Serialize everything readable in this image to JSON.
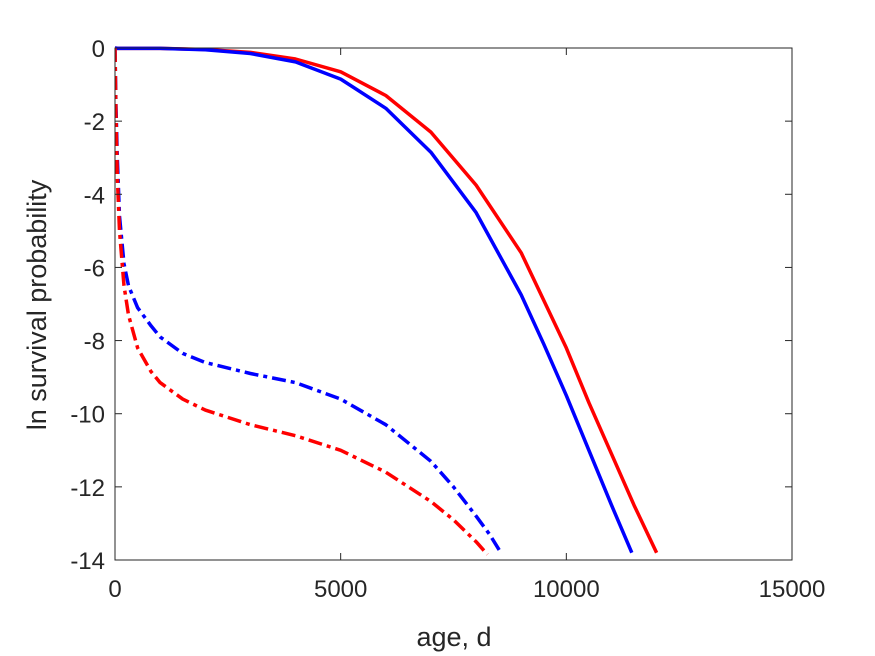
{
  "chart_data": {
    "type": "line",
    "title": "",
    "xlabel": "age, d",
    "ylabel": "ln survival probability",
    "xlim": [
      0,
      15000
    ],
    "ylim": [
      -14,
      0
    ],
    "xticks": [
      0,
      5000,
      10000,
      15000
    ],
    "yticks": [
      0,
      -2,
      -4,
      -6,
      -8,
      -10,
      -12,
      -14
    ],
    "xtick_labels": [
      "0",
      "5000",
      "10000",
      "15000"
    ],
    "ytick_labels": [
      "0",
      "-2",
      "-4",
      "-6",
      "-8",
      "-10",
      "-12",
      "-14"
    ],
    "grid": false,
    "legend": "none",
    "series": [
      {
        "color": "#ff0000",
        "style": "solid",
        "x": [
          0,
          60,
          500,
          1000,
          2000,
          3000,
          4000,
          5000,
          6000,
          7000,
          8000,
          9000,
          10000,
          10500,
          11000,
          11500,
          12000
        ],
        "y": [
          -0.0,
          -0.01,
          -0.01,
          -0.01,
          -0.04,
          -0.12,
          -0.3,
          -0.65,
          -1.3,
          -2.3,
          -3.75,
          -5.6,
          -8.2,
          -9.7,
          -11.1,
          -12.5,
          -13.8
        ]
      },
      {
        "color": "#0000ff",
        "style": "solid",
        "x": [
          0,
          60,
          500,
          1000,
          2000,
          3000,
          4000,
          5000,
          6000,
          7000,
          8000,
          9000,
          9500,
          10000,
          10500,
          11000,
          11450
        ],
        "y": [
          -0.0,
          -0.01,
          -0.01,
          -0.01,
          -0.05,
          -0.15,
          -0.38,
          -0.85,
          -1.65,
          -2.85,
          -4.5,
          -6.75,
          -8.1,
          -9.5,
          -11.0,
          -12.5,
          -13.8
        ]
      },
      {
        "color": "#0000ff",
        "style": "dashdot",
        "x": [
          0,
          20,
          50,
          100,
          200,
          300,
          500,
          800,
          1000,
          1500,
          2000,
          3000,
          4000,
          5000,
          6000,
          7000,
          7500,
          8000,
          8300,
          8550
        ],
        "y": [
          0.0,
          -1.5,
          -3.0,
          -4.6,
          -5.9,
          -6.5,
          -7.1,
          -7.6,
          -7.9,
          -8.35,
          -8.6,
          -8.9,
          -9.15,
          -9.6,
          -10.3,
          -11.3,
          -12.0,
          -12.8,
          -13.3,
          -13.8
        ]
      },
      {
        "color": "#ff0000",
        "style": "dashdot",
        "x": [
          0,
          20,
          50,
          100,
          200,
          300,
          500,
          800,
          1000,
          1500,
          2000,
          3000,
          4000,
          5000,
          6000,
          7000,
          7500,
          8000,
          8250
        ],
        "y": [
          0.0,
          -1.8,
          -3.5,
          -5.0,
          -6.5,
          -7.3,
          -8.2,
          -8.85,
          -9.15,
          -9.6,
          -9.9,
          -10.3,
          -10.6,
          -11.0,
          -11.6,
          -12.4,
          -12.9,
          -13.5,
          -13.85
        ]
      }
    ]
  }
}
